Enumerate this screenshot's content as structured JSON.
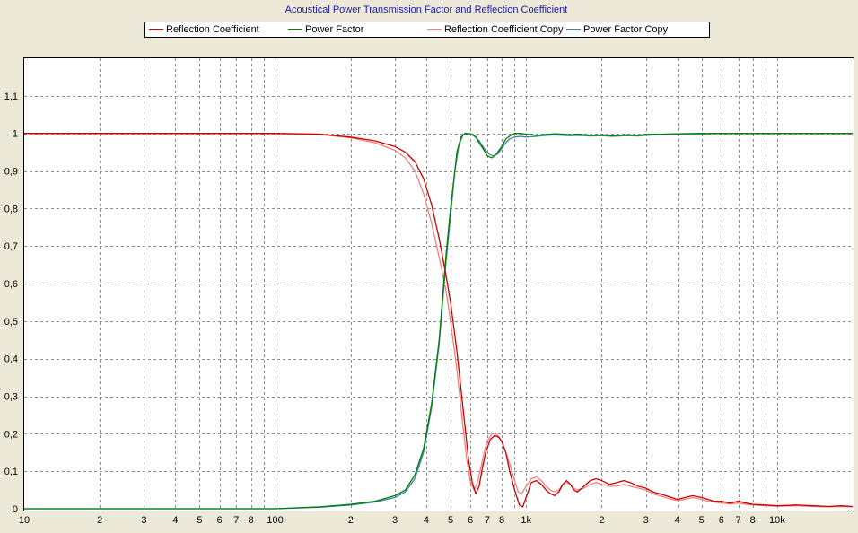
{
  "chart_data": {
    "type": "line",
    "title": "Acoustical Power Transmission Factor and Reflection Coefficient",
    "xscale": "log",
    "xlim": [
      10,
      20000
    ],
    "ylim": [
      0,
      1.2
    ],
    "grid": true,
    "legend_position": "top",
    "x_tick_labels": [
      {
        "value": 10,
        "label": "10"
      },
      {
        "value": 20,
        "label": "2"
      },
      {
        "value": 30,
        "label": "3"
      },
      {
        "value": 40,
        "label": "4"
      },
      {
        "value": 50,
        "label": "5"
      },
      {
        "value": 60,
        "label": "6"
      },
      {
        "value": 70,
        "label": "7"
      },
      {
        "value": 80,
        "label": "8"
      },
      {
        "value": 100,
        "label": "100"
      },
      {
        "value": 200,
        "label": "2"
      },
      {
        "value": 300,
        "label": "3"
      },
      {
        "value": 400,
        "label": "4"
      },
      {
        "value": 500,
        "label": "5"
      },
      {
        "value": 600,
        "label": "6"
      },
      {
        "value": 700,
        "label": "7"
      },
      {
        "value": 800,
        "label": "8"
      },
      {
        "value": 1000,
        "label": "1k"
      },
      {
        "value": 2000,
        "label": "2"
      },
      {
        "value": 3000,
        "label": "3"
      },
      {
        "value": 4000,
        "label": "4"
      },
      {
        "value": 5000,
        "label": "5"
      },
      {
        "value": 6000,
        "label": "6"
      },
      {
        "value": 7000,
        "label": "7"
      },
      {
        "value": 8000,
        "label": "8"
      },
      {
        "value": 10000,
        "label": "10k"
      }
    ],
    "x_minor_grid": [
      90,
      900,
      9000
    ],
    "y_tick_labels": [
      {
        "value": 0,
        "label": "0"
      },
      {
        "value": 0.1,
        "label": "0,1"
      },
      {
        "value": 0.2,
        "label": "0,2"
      },
      {
        "value": 0.3,
        "label": "0,3"
      },
      {
        "value": 0.4,
        "label": "0,4"
      },
      {
        "value": 0.5,
        "label": "0,5"
      },
      {
        "value": 0.6,
        "label": "0,6"
      },
      {
        "value": 0.7,
        "label": "0,7"
      },
      {
        "value": 0.8,
        "label": "0,8"
      },
      {
        "value": 0.9,
        "label": "0,9"
      },
      {
        "value": 1.0,
        "label": "1"
      },
      {
        "value": 1.1,
        "label": "1,1"
      }
    ],
    "series": [
      {
        "name": "Reflection Coefficient",
        "color": "#cc0000",
        "x": [
          10,
          100,
          150,
          200,
          250,
          300,
          330,
          360,
          390,
          420,
          450,
          480,
          500,
          530,
          560,
          590,
          610,
          630,
          650,
          670,
          690,
          720,
          750,
          780,
          800,
          830,
          860,
          900,
          940,
          970,
          1000,
          1050,
          1100,
          1150,
          1200,
          1250,
          1300,
          1350,
          1400,
          1450,
          1500,
          1550,
          1600,
          1700,
          1800,
          1900,
          2000,
          2150,
          2300,
          2450,
          2600,
          2800,
          3000,
          3200,
          3400,
          3600,
          3800,
          4000,
          4300,
          4600,
          5000,
          5300,
          5600,
          6000,
          6500,
          7000,
          7500,
          8000,
          9000,
          10000,
          12000,
          14000,
          16000,
          18000,
          20000
        ],
        "y": [
          1.0,
          1.0,
          0.998,
          0.99,
          0.98,
          0.965,
          0.95,
          0.925,
          0.88,
          0.81,
          0.72,
          0.62,
          0.55,
          0.42,
          0.27,
          0.13,
          0.07,
          0.04,
          0.06,
          0.11,
          0.15,
          0.185,
          0.195,
          0.19,
          0.18,
          0.15,
          0.1,
          0.05,
          0.01,
          0.005,
          0.03,
          0.07,
          0.075,
          0.065,
          0.05,
          0.04,
          0.035,
          0.045,
          0.065,
          0.075,
          0.065,
          0.05,
          0.045,
          0.06,
          0.075,
          0.08,
          0.075,
          0.065,
          0.07,
          0.075,
          0.07,
          0.06,
          0.055,
          0.045,
          0.04,
          0.035,
          0.03,
          0.025,
          0.03,
          0.035,
          0.03,
          0.025,
          0.02,
          0.02,
          0.015,
          0.02,
          0.015,
          0.012,
          0.01,
          0.008,
          0.01,
          0.008,
          0.006,
          0.008,
          0.006
        ]
      },
      {
        "name": "Power Factor",
        "color": "#008000",
        "x": [
          10,
          100,
          150,
          200,
          250,
          300,
          330,
          360,
          390,
          420,
          450,
          480,
          500,
          530,
          550,
          570,
          600,
          630,
          650,
          680,
          700,
          730,
          760,
          800,
          830,
          870,
          900,
          950,
          1000,
          1100,
          1200,
          1300,
          1400,
          1500,
          1600,
          1800,
          2000,
          2200,
          2500,
          2800,
          3000,
          3500,
          4000,
          5000,
          6000,
          10000,
          20000
        ],
        "y": [
          0.0,
          0.0,
          0.005,
          0.012,
          0.02,
          0.035,
          0.05,
          0.09,
          0.16,
          0.28,
          0.45,
          0.68,
          0.8,
          0.95,
          0.99,
          1.0,
          0.999,
          0.99,
          0.975,
          0.955,
          0.94,
          0.935,
          0.945,
          0.965,
          0.985,
          0.995,
          1.0,
          1.0,
          0.998,
          0.995,
          0.997,
          0.999,
          0.998,
          0.996,
          0.998,
          0.995,
          0.996,
          0.994,
          0.996,
          0.995,
          0.997,
          0.998,
          0.999,
          1.0,
          1.0,
          1.0,
          1.0
        ]
      },
      {
        "name": "Reflection Coefficient Copy",
        "color": "#f08080",
        "x": [
          10,
          100,
          150,
          200,
          250,
          300,
          330,
          360,
          390,
          420,
          450,
          480,
          500,
          530,
          560,
          580,
          600,
          620,
          640,
          660,
          680,
          700,
          730,
          760,
          790,
          820,
          860,
          900,
          930,
          960,
          1000,
          1050,
          1100,
          1150,
          1200,
          1250,
          1300,
          1350,
          1400,
          1450,
          1500,
          1550,
          1600,
          1700,
          1800,
          1900,
          2000,
          2150,
          2300,
          2450,
          2600,
          2800,
          3000,
          3200,
          3400,
          3600,
          3800,
          4000,
          4300,
          4600,
          5000,
          5300,
          5600,
          6000,
          6500,
          7000,
          7500,
          8000,
          9000,
          10000,
          12000,
          14000,
          16000,
          18000,
          20000
        ],
        "y": [
          1.0,
          1.0,
          0.997,
          0.988,
          0.975,
          0.955,
          0.935,
          0.9,
          0.84,
          0.76,
          0.67,
          0.58,
          0.5,
          0.37,
          0.22,
          0.13,
          0.07,
          0.05,
          0.07,
          0.11,
          0.15,
          0.18,
          0.2,
          0.2,
          0.185,
          0.16,
          0.12,
          0.075,
          0.045,
          0.04,
          0.06,
          0.08,
          0.085,
          0.075,
          0.06,
          0.05,
          0.045,
          0.05,
          0.065,
          0.07,
          0.065,
          0.055,
          0.05,
          0.055,
          0.065,
          0.07,
          0.065,
          0.06,
          0.06,
          0.065,
          0.06,
          0.055,
          0.05,
          0.04,
          0.035,
          0.03,
          0.025,
          0.022,
          0.025,
          0.03,
          0.025,
          0.02,
          0.018,
          0.015,
          0.013,
          0.015,
          0.012,
          0.01,
          0.008,
          0.007,
          0.008,
          0.006,
          0.005,
          0.006,
          0.005
        ]
      },
      {
        "name": "Power Factor Copy",
        "color": "#3b7fb0",
        "x": [
          10,
          100,
          150,
          200,
          250,
          300,
          330,
          360,
          390,
          420,
          450,
          480,
          500,
          520,
          540,
          560,
          590,
          620,
          650,
          680,
          710,
          740,
          770,
          800,
          830,
          860,
          900,
          950,
          1000,
          1100,
          1200,
          1300,
          1400,
          1500,
          1600,
          1800,
          2000,
          2200,
          2500,
          2800,
          3000,
          3500,
          4000,
          5000,
          6000,
          10000,
          20000
        ],
        "y": [
          0.0,
          0.0,
          0.004,
          0.01,
          0.018,
          0.03,
          0.045,
          0.08,
          0.15,
          0.27,
          0.44,
          0.66,
          0.78,
          0.9,
          0.97,
          0.995,
          1.0,
          0.995,
          0.98,
          0.96,
          0.945,
          0.94,
          0.945,
          0.96,
          0.975,
          0.985,
          0.99,
          0.992,
          0.99,
          0.992,
          0.995,
          0.996,
          0.995,
          0.994,
          0.995,
          0.993,
          0.994,
          0.992,
          0.994,
          0.993,
          0.995,
          0.997,
          0.998,
          0.999,
          1.0,
          1.0,
          1.0
        ]
      }
    ]
  }
}
